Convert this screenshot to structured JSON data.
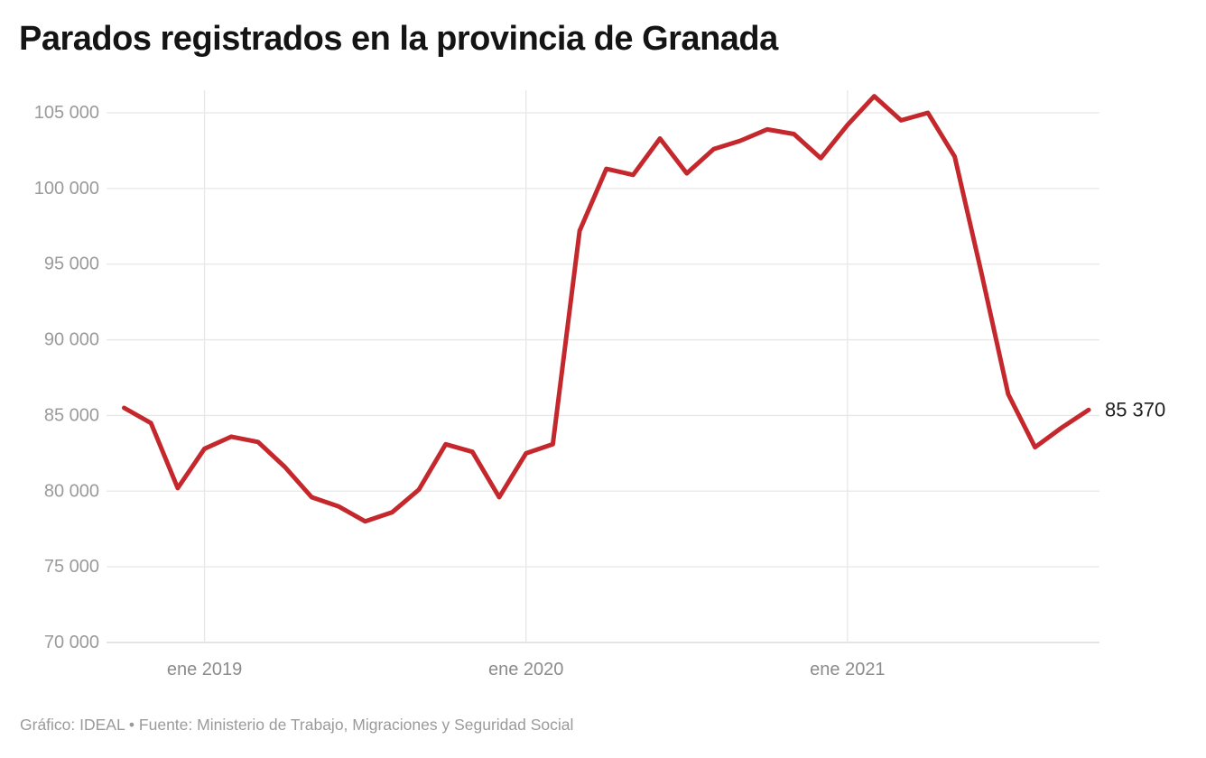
{
  "title": "Parados registrados en la provincia de Granada",
  "footer": {
    "text": "Gráfico: IDEAL • Fuente: Ministerio de Trabajo, Migraciones y Seguridad Social"
  },
  "colors": {
    "line": "#c5282c",
    "grid": "#e7e7e7",
    "axis": "#d4d4d4",
    "y_tick_text": "#9a9a9a",
    "x_tick_text": "#8c8c8c",
    "title_text": "#141414",
    "end_label_text": "#1f1f1f",
    "background": "#ffffff"
  },
  "chart_data": {
    "type": "line",
    "title": "Parados registrados en la provincia de Granada",
    "xlabel": "",
    "ylabel": "",
    "legend": "none",
    "grid": "horizontal gridlines every 5000; vertical gridlines at each January",
    "x": [
      "oct 2018",
      "nov 2018",
      "dic 2018",
      "ene 2019",
      "feb 2019",
      "mar 2019",
      "abr 2019",
      "may 2019",
      "jun 2019",
      "jul 2019",
      "ago 2019",
      "sep 2019",
      "oct 2019",
      "nov 2019",
      "dic 2019",
      "ene 2020",
      "feb 2020",
      "mar 2020",
      "abr 2020",
      "may 2020",
      "jun 2020",
      "jul 2020",
      "ago 2020",
      "sep 2020",
      "oct 2020",
      "nov 2020",
      "dic 2020",
      "ene 2021",
      "feb 2021",
      "mar 2021",
      "abr 2021",
      "may 2021",
      "jun 2021",
      "jul 2021",
      "ago 2021",
      "sep 2021",
      "oct 2021"
    ],
    "series": [
      {
        "name": "Parados registrados",
        "values": [
          85500,
          84500,
          80200,
          82800,
          83600,
          83250,
          81600,
          79600,
          79000,
          78000,
          78600,
          80100,
          83100,
          82600,
          79600,
          82500,
          83100,
          97200,
          101300,
          100900,
          103300,
          101000,
          102600,
          103150,
          103900,
          103600,
          102000,
          104200,
          106100,
          104500,
          105000,
          102100,
          94400,
          86400,
          82900,
          84200,
          85370
        ]
      }
    ],
    "y_axis": {
      "min": 70000,
      "max": 105000,
      "ticks": [
        {
          "value": 105000,
          "label": "105 000"
        },
        {
          "value": 100000,
          "label": "100 000"
        },
        {
          "value": 95000,
          "label": "95 000"
        },
        {
          "value": 90000,
          "label": "90 000"
        },
        {
          "value": 85000,
          "label": "85 000"
        },
        {
          "value": 80000,
          "label": "80 000"
        },
        {
          "value": 75000,
          "label": "75 000"
        },
        {
          "value": 70000,
          "label": "70 000"
        }
      ]
    },
    "x_axis": {
      "ticks": [
        {
          "index": 3,
          "label": "ene 2019"
        },
        {
          "index": 15,
          "label": "ene 2020"
        },
        {
          "index": 27,
          "label": "ene 2021"
        }
      ]
    },
    "end_label": "85 370"
  }
}
